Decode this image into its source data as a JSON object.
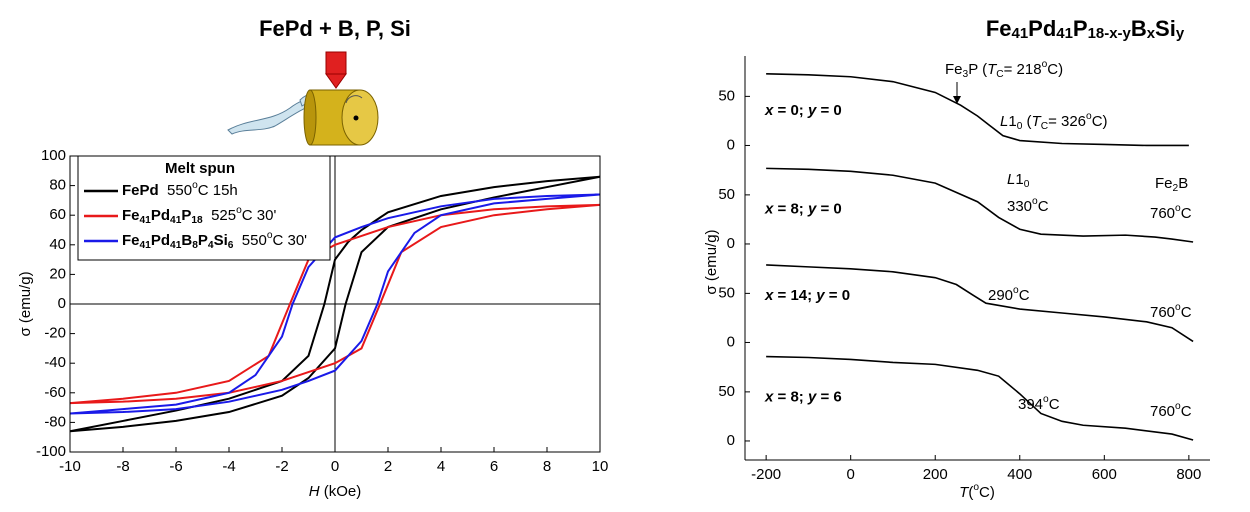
{
  "chart_data": [
    {
      "type": "hysteresis",
      "title": "FePd + B, P, Si",
      "xlabel": [
        {
          "text": "H",
          "style": "italic"
        },
        {
          "text": " (kOe)"
        }
      ],
      "ylabel": "σ (emu/g)",
      "xlim": [
        -10,
        10
      ],
      "ylim": [
        -100,
        100
      ],
      "xticks": [
        -10,
        -8,
        -6,
        -4,
        -2,
        0,
        2,
        4,
        6,
        8,
        10
      ],
      "yticks": [
        -100,
        -80,
        -60,
        -40,
        -20,
        0,
        20,
        40,
        60,
        80,
        100
      ],
      "legend": "upper left",
      "legend_title": "Melt spun",
      "series": [
        {
          "name": [
            {
              "text": "FePd",
              "style": "bold"
            },
            {
              "text": "  550"
            },
            {
              "text": "o",
              "style": "sup"
            },
            {
              "text": "C 15h"
            }
          ],
          "color": "#000000",
          "x": [
            10,
            8,
            6,
            4,
            2,
            1,
            0.5,
            0,
            -0.4,
            -1,
            -2,
            -4,
            -6,
            -8,
            -10,
            -8,
            -6,
            -4,
            -2,
            -1,
            0,
            0.4,
            1,
            2,
            4,
            6,
            8,
            10
          ],
          "values": [
            86,
            83,
            79,
            73,
            62,
            50,
            42,
            30,
            0,
            -35,
            -52,
            -64,
            -72,
            -79,
            -86,
            -83,
            -79,
            -73,
            -62,
            -50,
            -30,
            0,
            35,
            52,
            64,
            72,
            79,
            86
          ]
        },
        {
          "name": [
            {
              "text": "Fe",
              "style": "bold"
            },
            {
              "text": "41",
              "style": "sub bold"
            },
            {
              "text": "Pd",
              "style": "bold"
            },
            {
              "text": "41",
              "style": "sub bold"
            },
            {
              "text": "P",
              "style": "bold"
            },
            {
              "text": "18",
              "style": "sub bold"
            },
            {
              "text": "  525"
            },
            {
              "text": "o",
              "style": "sup"
            },
            {
              "text": "C 30'"
            }
          ],
          "color": "#e8191a",
          "x": [
            10,
            8,
            6,
            4,
            2,
            1,
            0,
            -1,
            -1.7,
            -2.5,
            -4,
            -6,
            -8,
            -10,
            -8,
            -6,
            -4,
            -2,
            -1,
            0,
            1,
            1.7,
            2.5,
            4,
            6,
            8,
            10
          ],
          "values": [
            67,
            66,
            64,
            60,
            52,
            46,
            40,
            30,
            0,
            -35,
            -52,
            -60,
            -64,
            -67,
            -66,
            -64,
            -60,
            -52,
            -46,
            -40,
            -30,
            0,
            35,
            52,
            60,
            64,
            67
          ]
        },
        {
          "name": [
            {
              "text": "Fe",
              "style": "bold"
            },
            {
              "text": "41",
              "style": "sub bold"
            },
            {
              "text": "Pd",
              "style": "bold"
            },
            {
              "text": "41",
              "style": "sub bold"
            },
            {
              "text": "B",
              "style": "bold"
            },
            {
              "text": "8",
              "style": "sub bold"
            },
            {
              "text": "P",
              "style": "bold"
            },
            {
              "text": "4",
              "style": "sub bold"
            },
            {
              "text": "Si",
              "style": "bold"
            },
            {
              "text": "6",
              "style": "sub bold"
            },
            {
              "text": "  550"
            },
            {
              "text": "o",
              "style": "sup"
            },
            {
              "text": "C 30'"
            }
          ],
          "color": "#1a1ae8",
          "x": [
            10,
            8,
            6,
            4,
            2,
            1,
            0,
            -1,
            -1.6,
            -2,
            -3,
            -4,
            -6,
            -8,
            -10,
            -8,
            -6,
            -4,
            -2,
            -1,
            0,
            1,
            1.6,
            2,
            3,
            4,
            6,
            8,
            10
          ],
          "values": [
            74,
            73,
            71,
            66,
            58,
            52,
            45,
            25,
            0,
            -22,
            -48,
            -60,
            -68,
            -71,
            -74,
            -73,
            -71,
            -66,
            -58,
            -52,
            -45,
            -25,
            0,
            22,
            48,
            60,
            68,
            71,
            74
          ]
        }
      ]
    },
    {
      "type": "stacked_line",
      "title": [
        {
          "text": "Fe"
        },
        {
          "text": "41",
          "style": "sub"
        },
        {
          "text": "Pd"
        },
        {
          "text": "41",
          "style": "sub"
        },
        {
          "text": "P"
        },
        {
          "text": "18-x-y",
          "style": "sub"
        },
        {
          "text": "B"
        },
        {
          "text": "x",
          "style": "sub"
        },
        {
          "text": "Si"
        },
        {
          "text": "y",
          "style": "sub"
        }
      ],
      "xlabel": [
        {
          "text": "T",
          "style": "italic"
        },
        {
          "text": "("
        },
        {
          "text": "o",
          "style": "sup"
        },
        {
          "text": "C)"
        }
      ],
      "ylabel": "σ (emu/g)",
      "xlim": [
        -250,
        850
      ],
      "xticks": [
        -200,
        0,
        200,
        400,
        600,
        800
      ],
      "panels": [
        {
          "label": [
            {
              "text": "x",
              "style": "italic"
            },
            {
              "text": " = 0; "
            },
            {
              "text": "y",
              "style": "italic"
            },
            {
              "text": " = 0"
            }
          ],
          "ylim": [
            -20,
            90
          ],
          "yticks": [
            0,
            50
          ],
          "color": "#000000",
          "x": [
            -200,
            -100,
            0,
            100,
            200,
            260,
            300,
            330,
            360,
            400,
            500,
            600,
            700,
            800
          ],
          "values": [
            73,
            72,
            70,
            65,
            54,
            41,
            30,
            20,
            10,
            5,
            2,
            1,
            0,
            0
          ],
          "annotations": [
            [
              {
                "text": "Fe"
              },
              {
                "text": "3",
                "style": "sub"
              },
              {
                "text": "P ("
              },
              {
                "text": "T",
                "style": "italic"
              },
              {
                "text": "C",
                "style": "sub"
              },
              {
                "text": "= 218"
              },
              {
                "text": "o",
                "style": "sup"
              },
              {
                "text": "C)"
              }
            ],
            [
              {
                "text": "L",
                "style": "italic"
              },
              {
                "text": "1"
              },
              {
                "text": "0",
                "style": "sub"
              },
              {
                "text": " ("
              },
              {
                "text": "T",
                "style": "italic"
              },
              {
                "text": "C",
                "style": "sub"
              },
              {
                "text": "= 326"
              },
              {
                "text": "o",
                "style": "sup"
              },
              {
                "text": "C)"
              }
            ]
          ]
        },
        {
          "label": [
            {
              "text": "x",
              "style": "italic"
            },
            {
              "text": " = 8; "
            },
            {
              "text": "y",
              "style": "italic"
            },
            {
              "text": " = 0"
            }
          ],
          "ylim": [
            -20,
            90
          ],
          "yticks": [
            0,
            50
          ],
          "color": "#000000",
          "x": [
            -200,
            -100,
            0,
            100,
            200,
            300,
            350,
            400,
            450,
            550,
            650,
            720,
            760,
            810
          ],
          "values": [
            77,
            76,
            74,
            70,
            62,
            43,
            27,
            15,
            10,
            8,
            9,
            7,
            5,
            2
          ],
          "annotations": [
            [
              {
                "text": "L",
                "style": "italic"
              },
              {
                "text": "1"
              },
              {
                "text": "0",
                "style": "sub"
              }
            ],
            [
              {
                "text": "330"
              },
              {
                "text": "o",
                "style": "sup"
              },
              {
                "text": "C"
              }
            ],
            [
              {
                "text": "Fe"
              },
              {
                "text": "2",
                "style": "sub"
              },
              {
                "text": "B"
              }
            ],
            [
              {
                "text": "760"
              },
              {
                "text": "o",
                "style": "sup"
              },
              {
                "text": "C"
              }
            ]
          ]
        },
        {
          "label": [
            {
              "text": "x",
              "style": "italic"
            },
            {
              "text": " = 14; "
            },
            {
              "text": "y",
              "style": "italic"
            },
            {
              "text": " = 0"
            }
          ],
          "ylim": [
            -20,
            90
          ],
          "yticks": [
            0,
            50
          ],
          "color": "#000000",
          "x": [
            -200,
            -100,
            0,
            100,
            200,
            250,
            290,
            320,
            400,
            500,
            600,
            700,
            760,
            810
          ],
          "values": [
            79,
            77,
            75,
            72,
            66,
            59,
            48,
            40,
            34,
            30,
            26,
            21,
            15,
            1
          ],
          "annotations": [
            [
              {
                "text": "290"
              },
              {
                "text": "o",
                "style": "sup"
              },
              {
                "text": "C"
              }
            ],
            [
              {
                "text": "760"
              },
              {
                "text": "o",
                "style": "sup"
              },
              {
                "text": "C"
              }
            ]
          ]
        },
        {
          "label": [
            {
              "text": "x",
              "style": "italic"
            },
            {
              "text": " = 8; "
            },
            {
              "text": "y",
              "style": "italic"
            },
            {
              "text": " = 6"
            }
          ],
          "ylim": [
            -20,
            90
          ],
          "yticks": [
            0,
            50
          ],
          "color": "#000000",
          "x": [
            -200,
            -100,
            0,
            100,
            200,
            300,
            350,
            400,
            450,
            500,
            550,
            650,
            760,
            810
          ],
          "values": [
            86,
            85,
            83,
            80,
            78,
            72,
            66,
            48,
            28,
            20,
            16,
            13,
            7,
            1
          ],
          "annotations": [
            [
              {
                "text": "394"
              },
              {
                "text": "o",
                "style": "sup"
              },
              {
                "text": "C"
              }
            ],
            [
              {
                "text": "760"
              },
              {
                "text": "o",
                "style": "sup"
              },
              {
                "text": "C"
              }
            ]
          ]
        }
      ]
    }
  ]
}
